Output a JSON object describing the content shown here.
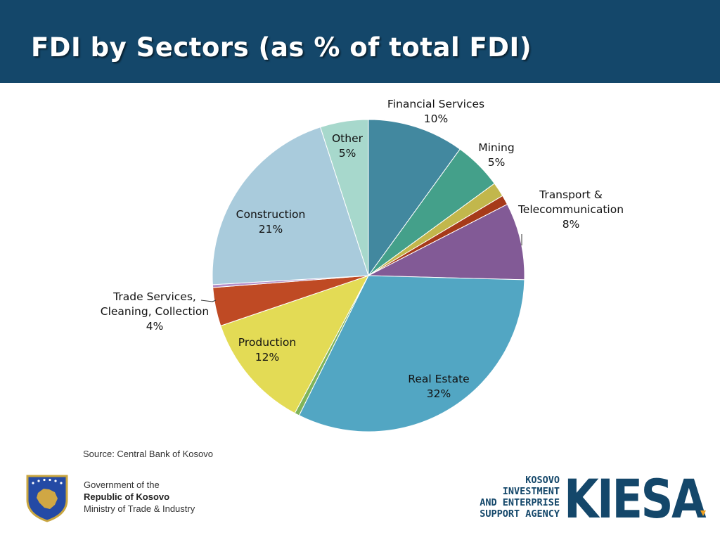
{
  "header": {
    "title": "FDI by Sectors (as % of total FDI)"
  },
  "chart_data": {
    "type": "pie",
    "title": "FDI by Sectors (as % of total FDI)",
    "slices": [
      {
        "name": "Financial Services",
        "value": 10,
        "value_label": "10%",
        "color": "#42889f"
      },
      {
        "name": "Mining",
        "value": 5,
        "value_label": "5%",
        "color": "#44a08a"
      },
      {
        "name": "",
        "value": 1.5,
        "value_label": "",
        "color": "#c2b74c"
      },
      {
        "name": "",
        "value": 1,
        "value_label": "",
        "color": "#a63a1a"
      },
      {
        "name": "Transport & Telecommunication",
        "name_lines": [
          "Transport &",
          "Telecommunication"
        ],
        "value": 8,
        "value_label": "8%",
        "color": "#825a96"
      },
      {
        "name": "Real Estate",
        "value": 32,
        "value_label": "32%",
        "color": "#52a6c3"
      },
      {
        "name": "",
        "value": 0.5,
        "value_label": "",
        "color": "#7fb45a"
      },
      {
        "name": "Production",
        "value": 12,
        "value_label": "12%",
        "color": "#e3db55"
      },
      {
        "name": "Trade Services, Cleaning, Collection",
        "name_lines": [
          "Trade Services,",
          "Cleaning, Collection"
        ],
        "value": 4,
        "value_label": "4%",
        "color": "#bf4a24"
      },
      {
        "name": "",
        "value": 0.3,
        "value_label": "",
        "color": "#b38ec8"
      },
      {
        "name": "Construction",
        "value": 21,
        "value_label": "21%",
        "color": "#a9cbdc"
      },
      {
        "name": "Other",
        "value": 5,
        "value_label": "5%",
        "color": "#a7d8cc"
      }
    ]
  },
  "source": {
    "text": "Source: Central Bank of Kosovo"
  },
  "footer": {
    "gov_line1": "Government of the",
    "gov_line2": "Republic of Kosovo",
    "gov_line3": "Ministry of Trade & Industry",
    "kiesa_line1": "KOSOVO",
    "kiesa_line2": "INVESTMENT",
    "kiesa_line3": "AND ENTERPRISE",
    "kiesa_line4": "SUPPORT AGENCY",
    "kiesa_logo": "KIESA"
  },
  "colors": {
    "header_bg": "#14476a",
    "kiesa_blue": "#14476a",
    "kiesa_orange": "#f0a01e"
  }
}
